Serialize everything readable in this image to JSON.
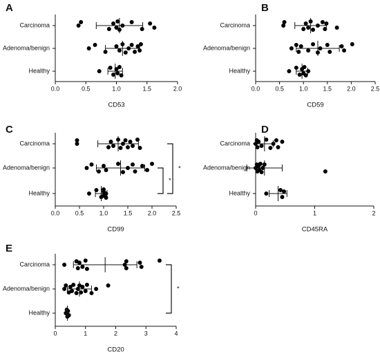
{
  "chart_data": [
    {
      "type": "scatter",
      "title": "A",
      "xlabel": "CD53",
      "xlim": [
        0,
        2
      ],
      "xticks": [
        {
          "value": 0,
          "label": "0.0"
        },
        0.5,
        {
          "value": 1,
          "label": "1.0"
        },
        1.5,
        {
          "value": 2,
          "label": "2.0"
        }
      ],
      "groups": [
        {
          "name": "Carcinoma",
          "values": [
            0.38,
            0.42,
            0.88,
            0.95,
            1.0,
            1.02,
            1.05,
            1.1,
            1.25,
            1.42,
            1.55,
            1.62
          ],
          "mean": 1.05,
          "error": 0.38
        },
        {
          "name": "Adenoma/benign",
          "values": [
            0.55,
            0.65,
            0.82,
            1.0,
            1.05,
            1.1,
            1.15,
            1.2,
            1.25,
            1.3,
            1.35,
            1.38,
            1.4
          ],
          "mean": 1.1,
          "error": 0.28
        },
        {
          "name": "Healthy",
          "values": [
            0.72,
            0.9,
            0.95,
            1.0,
            1.02,
            1.05,
            1.08
          ],
          "mean": 0.98,
          "error": 0.12
        }
      ]
    },
    {
      "type": "scatter",
      "title": "B",
      "xlabel": "CD59",
      "xlim": [
        0,
        2.5
      ],
      "xticks": [
        {
          "value": 0,
          "label": "0.0"
        },
        0.5,
        {
          "value": 1,
          "label": "1.0"
        },
        1.5,
        {
          "value": 2,
          "label": "2.0"
        },
        2.5
      ],
      "groups": [
        {
          "name": "Carcinoma",
          "values": [
            0.58,
            0.6,
            1.0,
            1.05,
            1.1,
            1.15,
            1.2,
            1.3,
            1.4,
            1.45,
            1.48,
            1.7
          ],
          "mean": 1.15,
          "error": 0.33
        },
        {
          "name": "Adenoma/benign",
          "values": [
            0.75,
            0.85,
            0.9,
            0.95,
            1.1,
            1.2,
            1.3,
            1.35,
            1.5,
            1.55,
            1.8,
            1.85,
            2.02
          ],
          "mean": 1.3,
          "error": 0.45
        },
        {
          "name": "Healthy",
          "values": [
            0.7,
            0.85,
            0.92,
            0.97,
            1.0,
            1.02,
            1.05,
            1.1
          ],
          "mean": 0.97,
          "error": 0.12
        }
      ]
    },
    {
      "type": "scatter",
      "title": "C",
      "xlabel": "CD99",
      "xlim": [
        0,
        2.5
      ],
      "xticks": [
        {
          "value": 0,
          "label": "0.0"
        },
        0.5,
        {
          "value": 1,
          "label": "1.0"
        },
        1.5,
        {
          "value": 2,
          "label": "2.0"
        },
        2.5
      ],
      "groups": [
        {
          "name": "Carcinoma",
          "values": [
            0.45,
            0.45,
            1.1,
            1.15,
            1.2,
            1.3,
            1.35,
            1.4,
            1.45,
            1.5,
            1.55,
            1.6,
            1.7,
            1.75
          ],
          "mean": 1.3,
          "error": 0.42
        },
        {
          "name": "Adenoma/benign",
          "values": [
            0.65,
            0.75,
            0.9,
            1.0,
            1.05,
            1.3,
            1.4,
            1.5,
            1.6,
            1.65,
            1.8,
            1.9,
            2.0
          ],
          "mean": 1.35,
          "error": 0.5
        },
        {
          "name": "Healthy",
          "values": [
            0.7,
            0.85,
            0.95,
            1.0,
            1.0,
            1.0,
            1.05,
            1.05
          ],
          "mean": 0.95,
          "error": 0.12
        }
      ],
      "annotations": [
        "*",
        "*"
      ]
    },
    {
      "type": "scatter",
      "title": "D",
      "xlabel": "CD45RA",
      "xlim": [
        0,
        2
      ],
      "xticks": [
        0,
        1,
        2
      ],
      "groups": [
        {
          "name": "Carcinoma",
          "values": [
            0.0,
            0.02,
            0.03,
            0.05,
            0.1,
            0.18,
            0.25,
            0.3,
            0.35,
            0.38,
            0.45
          ],
          "mean": 0.15,
          "error": 0.15
        },
        {
          "name": "Adenoma/benign",
          "values": [
            0.0,
            0.02,
            0.03,
            0.05,
            0.06,
            0.08,
            0.1,
            0.12,
            0.15,
            1.18
          ],
          "mean": 0.15,
          "error": 0.3
        },
        {
          "name": "Healthy",
          "values": [
            0.18,
            0.42,
            0.45,
            0.48
          ],
          "mean": 0.38,
          "error": 0.15
        }
      ]
    },
    {
      "type": "scatter",
      "title": "E",
      "xlabel": "CD20",
      "xlim": [
        0,
        4
      ],
      "xticks": [
        0,
        1,
        2,
        3,
        4
      ],
      "groups": [
        {
          "name": "Carcinoma",
          "values": [
            0.3,
            0.7,
            0.75,
            0.8,
            0.9,
            1.0,
            1.05,
            2.3,
            2.35,
            2.35,
            2.8,
            2.85,
            3.45
          ],
          "mean": 1.65,
          "error": 1.05
        },
        {
          "name": "Adenoma/benign",
          "values": [
            0.3,
            0.35,
            0.45,
            0.5,
            0.55,
            0.6,
            0.7,
            0.75,
            0.8,
            0.85,
            0.9,
            1.0,
            1.05,
            1.2,
            1.35,
            1.75
          ],
          "mean": 0.8,
          "error": 0.4
        },
        {
          "name": "Healthy",
          "values": [
            0.35,
            0.38,
            0.4,
            0.42,
            0.45
          ],
          "mean": 0.4,
          "error": 0.03
        }
      ],
      "annotations": [
        "*"
      ]
    }
  ]
}
